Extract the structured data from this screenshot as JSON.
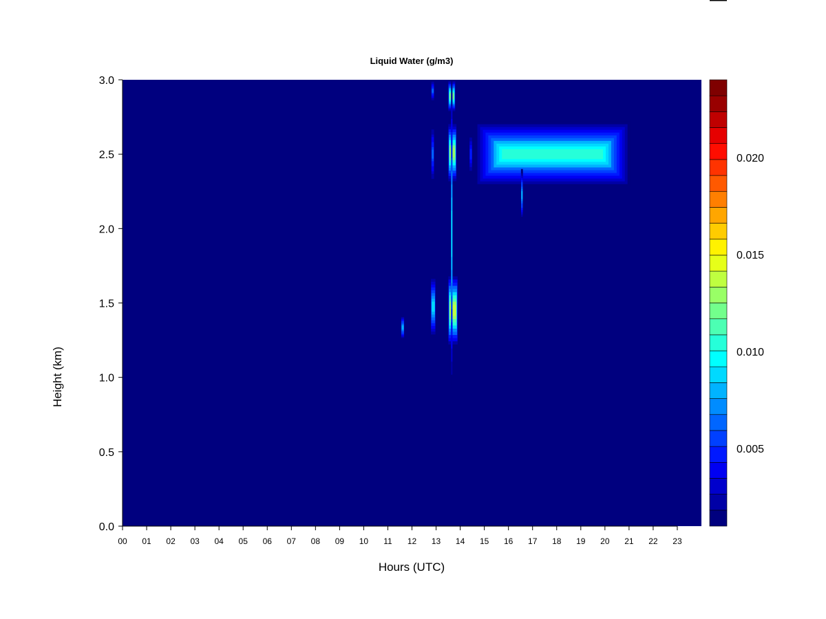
{
  "chart_data": {
    "type": "heatmap",
    "title": "Liquid Water (g/m3)",
    "xlabel": "Hours (UTC)",
    "ylabel": "Height (km)",
    "xlim": [
      0,
      24
    ],
    "ylim": [
      0,
      3
    ],
    "x_ticks": [
      "00",
      "01",
      "02",
      "03",
      "04",
      "05",
      "06",
      "07",
      "08",
      "09",
      "10",
      "11",
      "12",
      "13",
      "14",
      "15",
      "16",
      "17",
      "18",
      "19",
      "20",
      "21",
      "22",
      "23"
    ],
    "y_ticks": [
      "0.0",
      "0.5",
      "1.0",
      "1.5",
      "2.0",
      "2.5",
      "3.0"
    ],
    "colorbar": {
      "range": [
        0.001,
        0.024
      ],
      "tick_labels": [
        "0.005",
        "0.010",
        "0.015",
        "0.020"
      ],
      "tick_values": [
        0.005,
        0.01,
        0.015,
        0.02
      ],
      "colors": [
        "#00007F",
        "#0000A6",
        "#0000CC",
        "#0000F2",
        "#0019FF",
        "#0040FF",
        "#0066FF",
        "#008CFF",
        "#00B3FF",
        "#00D9FF",
        "#00FFFF",
        "#26FFD9",
        "#4CFFB3",
        "#73FF8C",
        "#99FF66",
        "#BFFF40",
        "#E6FF19",
        "#FFF200",
        "#FFCC00",
        "#FFA600",
        "#FF7F00",
        "#FF5900",
        "#FF3300",
        "#FF0D00",
        "#E60000",
        "#BF0000",
        "#990000",
        "#7F0000"
      ]
    },
    "background_value": 0.001,
    "features": [
      {
        "x": [
          14.6,
          21.05
        ],
        "y": [
          2.28,
          2.72
        ],
        "peak": 0.0105
      },
      {
        "x": [
          13.5,
          13.85
        ],
        "y": [
          2.3,
          2.72
        ],
        "peak": 0.013
      },
      {
        "x": [
          13.5,
          13.8
        ],
        "y": [
          2.78,
          3.0
        ],
        "peak": 0.012
      },
      {
        "x": [
          12.8,
          12.92
        ],
        "y": [
          2.3,
          2.7
        ],
        "peak": 0.006
      },
      {
        "x": [
          12.8,
          12.92
        ],
        "y": [
          2.85,
          3.0
        ],
        "peak": 0.006
      },
      {
        "x": [
          14.38,
          14.5
        ],
        "y": [
          2.35,
          2.65
        ],
        "peak": 0.005
      },
      {
        "x": [
          13.5,
          13.9
        ],
        "y": [
          1.2,
          1.7
        ],
        "peak": 0.014
      },
      {
        "x": [
          12.78,
          12.98
        ],
        "y": [
          1.25,
          1.7
        ],
        "peak": 0.009
      },
      {
        "x": [
          11.55,
          11.68
        ],
        "y": [
          1.25,
          1.42
        ],
        "peak": 0.008
      },
      {
        "x": [
          13.62,
          13.68
        ],
        "y": [
          0.93,
          3.0
        ],
        "peak": 0.01
      },
      {
        "x": [
          16.52,
          16.6
        ],
        "y": [
          2.05,
          2.4
        ],
        "peak": 0.008
      }
    ]
  }
}
